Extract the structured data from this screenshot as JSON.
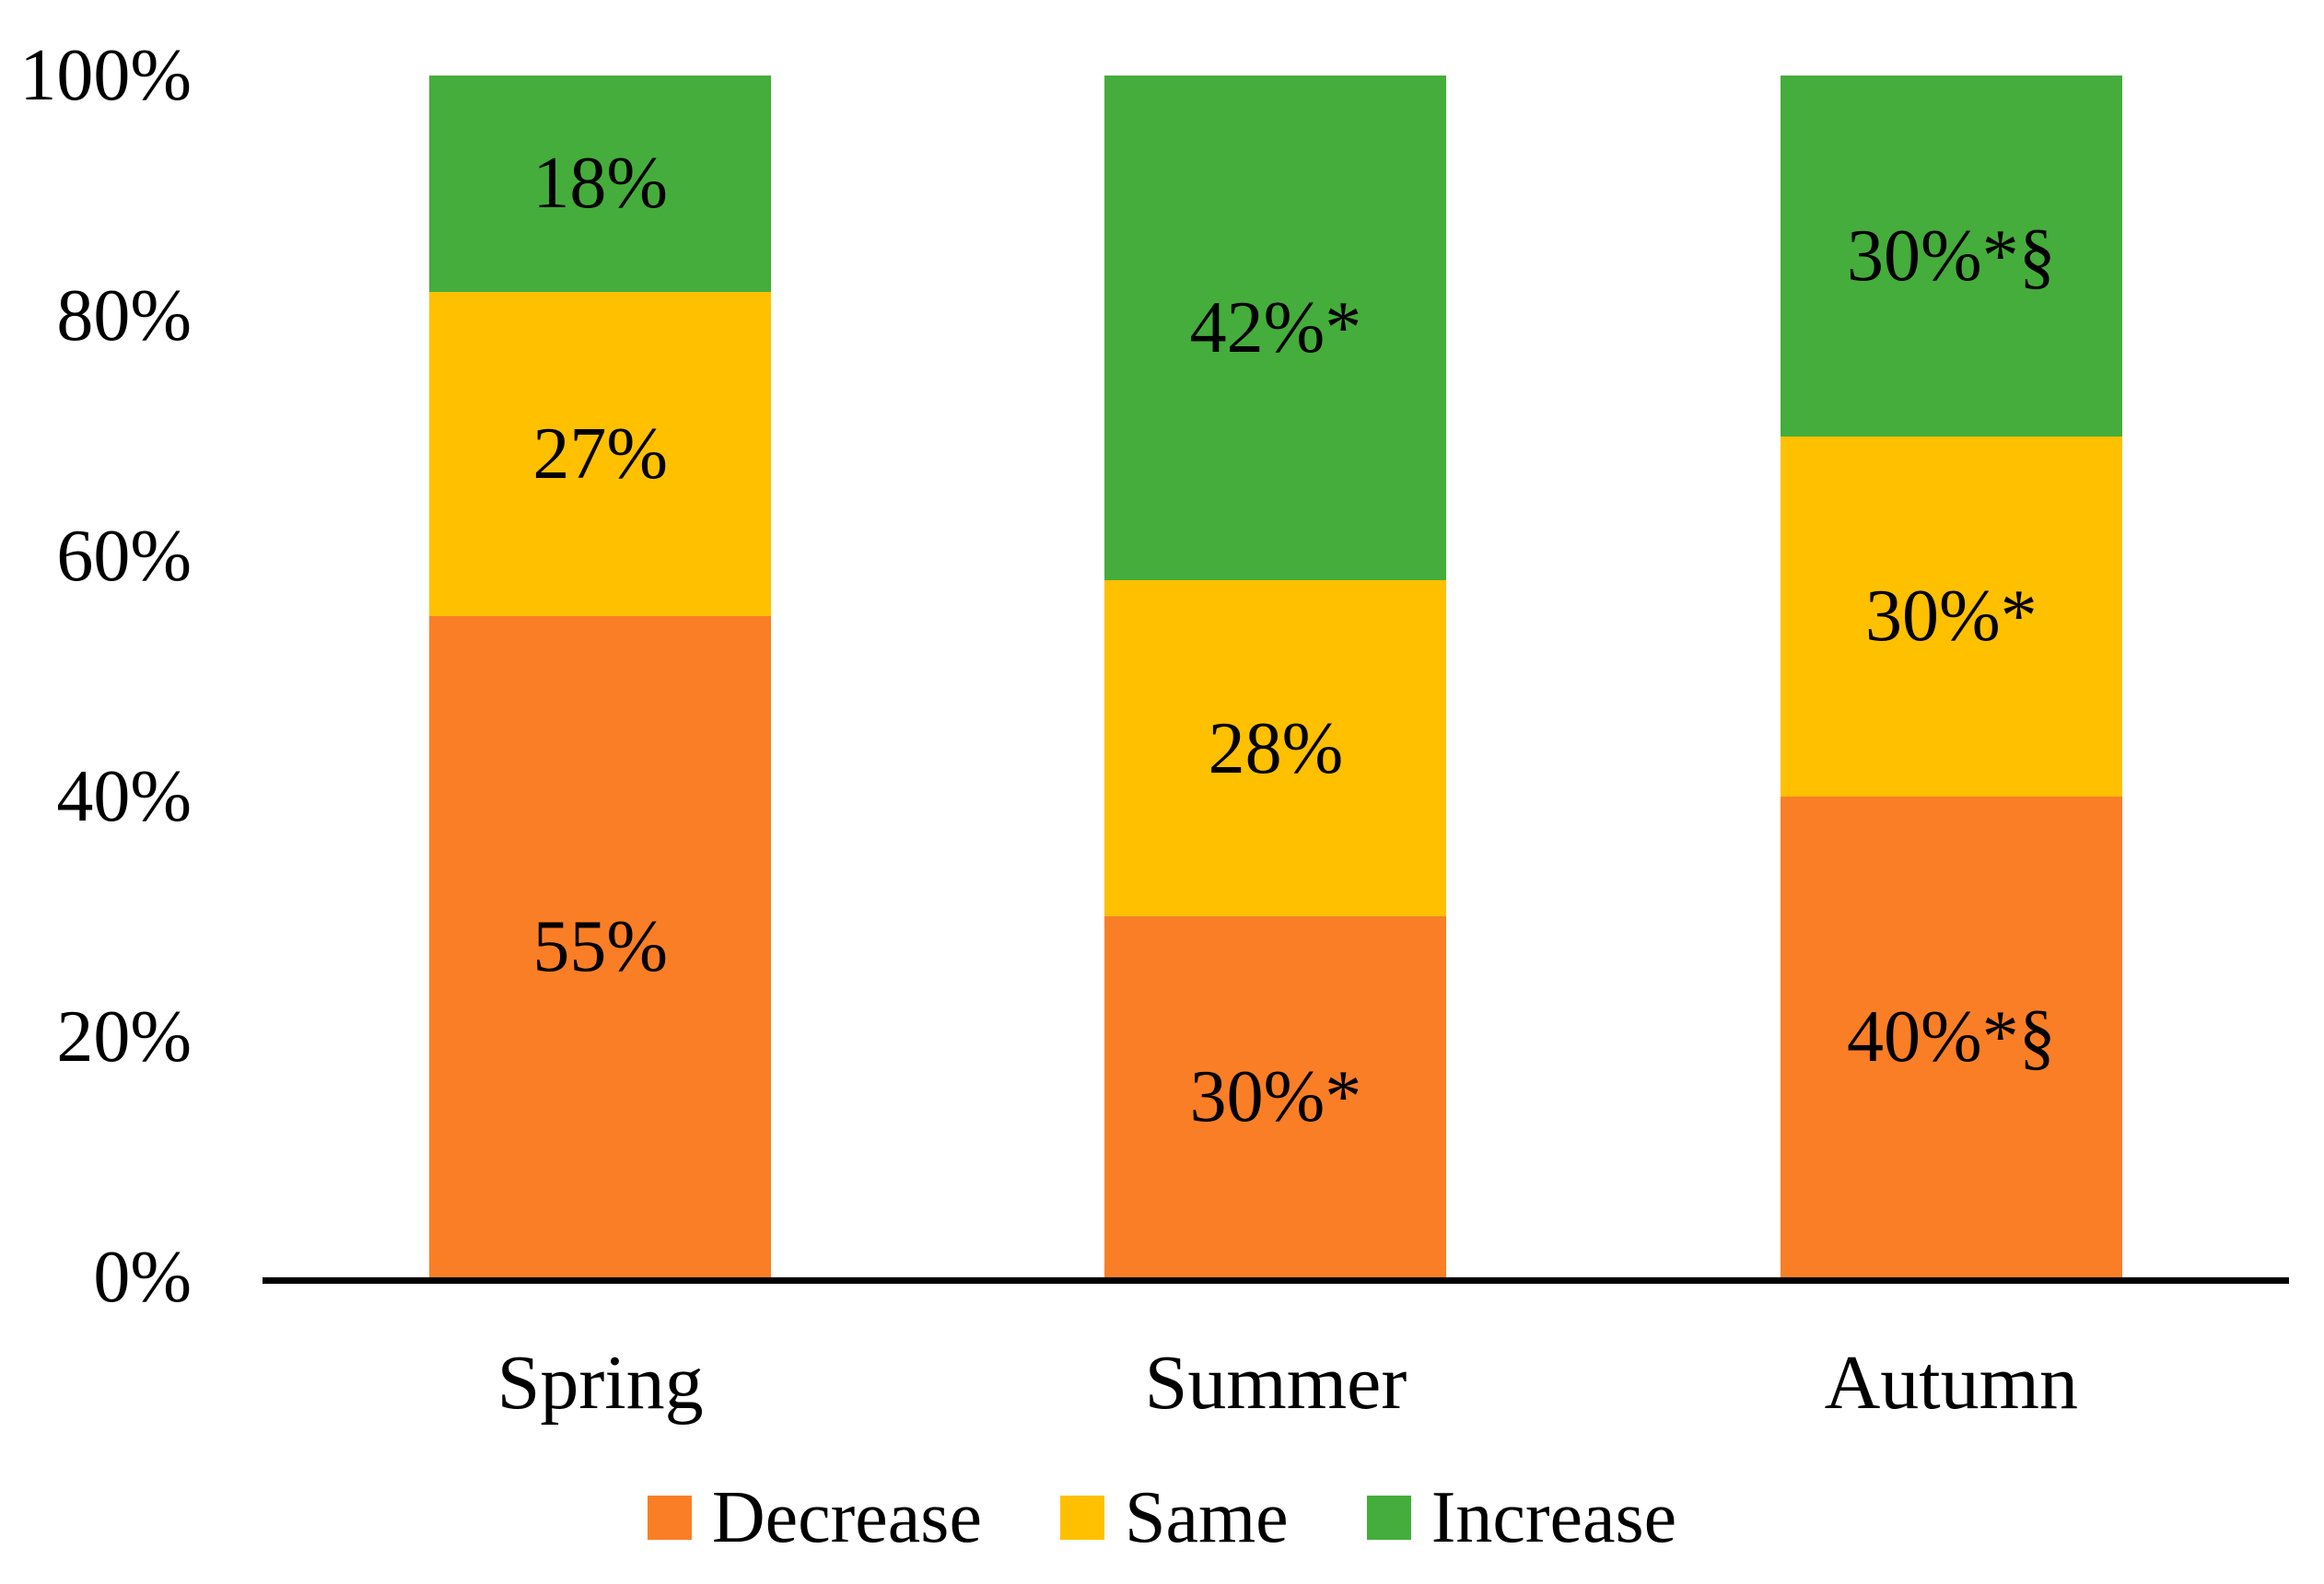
{
  "chart_data": {
    "type": "bar",
    "stacked": true,
    "orientation": "vertical",
    "title": "",
    "xlabel": "",
    "ylabel": "",
    "categories": [
      "Spring",
      "Summer",
      "Autumn"
    ],
    "series": [
      {
        "name": "Decrease",
        "color": "#FA7E26",
        "values": [
          55,
          30,
          40
        ],
        "labels": [
          "55%",
          "30%*",
          "40%*§"
        ]
      },
      {
        "name": "Same",
        "color": "#FFC000",
        "values": [
          27,
          28,
          30
        ],
        "labels": [
          "27%",
          "28%",
          "30%*"
        ]
      },
      {
        "name": "Increase",
        "color": "#45AD3B",
        "values": [
          18,
          42,
          30
        ],
        "labels": [
          "18%",
          "42%*",
          "30%*§"
        ]
      }
    ],
    "y_axis": {
      "min": 0,
      "max": 100,
      "ticks": [
        {
          "label": "0%",
          "value": 0
        },
        {
          "label": "20%",
          "value": 20
        },
        {
          "label": "40%",
          "value": 40
        },
        {
          "label": "60%",
          "value": 60
        },
        {
          "label": "80%",
          "value": 80
        },
        {
          "label": "100%",
          "value": 100
        }
      ]
    },
    "legend": {
      "position": "bottom",
      "items": [
        "Decrease",
        "Same",
        "Increase"
      ]
    },
    "grid": false,
    "data_label_color": "#000000",
    "axis_line_color": "#000000"
  }
}
